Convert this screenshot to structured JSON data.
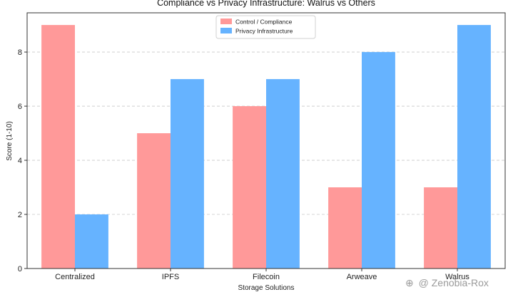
{
  "chart_data": {
    "type": "bar",
    "title": "Compliance vs Privacy Infrastructure: Walrus vs Others",
    "xlabel": "Storage Solutions",
    "ylabel": "Score (1-10)",
    "categories": [
      "Centralized",
      "IPFS",
      "Filecoin",
      "Arweave",
      "Walrus"
    ],
    "series": [
      {
        "name": "Control / Compliance",
        "values": [
          9,
          5,
          6,
          3,
          3
        ],
        "color": "#ff9999"
      },
      {
        "name": "Privacy Infrastructure",
        "values": [
          2,
          7,
          7,
          8,
          9
        ],
        "color": "#66b3ff"
      }
    ],
    "ylim": [
      0,
      9.45
    ],
    "yticks": [
      0,
      2,
      4,
      6,
      8
    ],
    "grid": true,
    "legend": "top-center"
  },
  "watermark": {
    "symbol": "⊕",
    "text": "@ Zenobia-Rox"
  }
}
